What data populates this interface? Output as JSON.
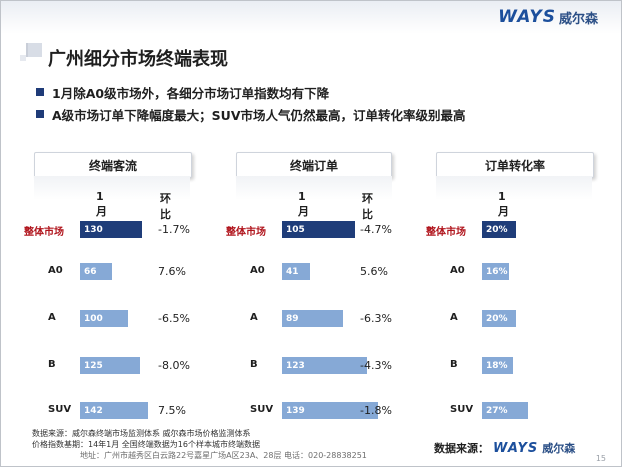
{
  "header": {
    "logo_latin": "WAYS",
    "logo_cn": "威尔森",
    "title": "广州细分市场终端表现"
  },
  "bullets": [
    "1月除A0级市场外，各细分市场订单指数均有下降",
    "A级市场订单下降幅度最大；SUV市场人气仍然最高，订单转化率级别最高"
  ],
  "colors": {
    "bar_total": "#1f3d79",
    "bar_segment": "#86a9d6",
    "total_label": "#b0131b"
  },
  "panels": [
    {
      "title": "终端客流",
      "col_month": "1月",
      "col_change": "环比",
      "rows": [
        {
          "label": "整体市场",
          "value": "130",
          "change": "-1.7%",
          "level": 130
        },
        {
          "label": "A0",
          "value": "66",
          "change": "7.6%",
          "level": 66
        },
        {
          "label": "A",
          "value": "100",
          "change": "-6.5%",
          "level": 100
        },
        {
          "label": "B",
          "value": "125",
          "change": "-8.0%",
          "level": 125
        },
        {
          "label": "SUV",
          "value": "142",
          "change": "7.5%",
          "level": 142
        }
      ]
    },
    {
      "title": "终端订单",
      "col_month": "1月",
      "col_change": "环比",
      "rows": [
        {
          "label": "整体市场",
          "value": "105",
          "change": "-4.7%",
          "level": 105
        },
        {
          "label": "A0",
          "value": "41",
          "change": "5.6%",
          "level": 41
        },
        {
          "label": "A",
          "value": "89",
          "change": "-6.3%",
          "level": 89
        },
        {
          "label": "B",
          "value": "123",
          "change": "-4.3%",
          "level": 123
        },
        {
          "label": "SUV",
          "value": "139",
          "change": "-1.8%",
          "level": 139
        }
      ]
    },
    {
      "title": "订单转化率",
      "col_month": "1月",
      "rows": [
        {
          "label": "整体市场",
          "value": "20%",
          "level": 20
        },
        {
          "label": "A0",
          "value": "16%",
          "level": 16
        },
        {
          "label": "A",
          "value": "20%",
          "level": 20
        },
        {
          "label": "B",
          "value": "18%",
          "level": 18
        },
        {
          "label": "SUV",
          "value": "27%",
          "level": 27
        }
      ]
    }
  ],
  "footer": {
    "line1": "数据来源：威尔森终端市场监测体系   威尔森市场价格监测体系",
    "line2": "价格指数基期：14年1月      全国终端数据为16个样本城市终端数据",
    "address": "地址：广州市越秀区白云路22号嘉星广场A区23A、28层   电话：020-28838251",
    "source_label": "数据来源：",
    "logo_latin": "WAYS",
    "logo_cn": "威尔森",
    "page_number": "15"
  }
}
